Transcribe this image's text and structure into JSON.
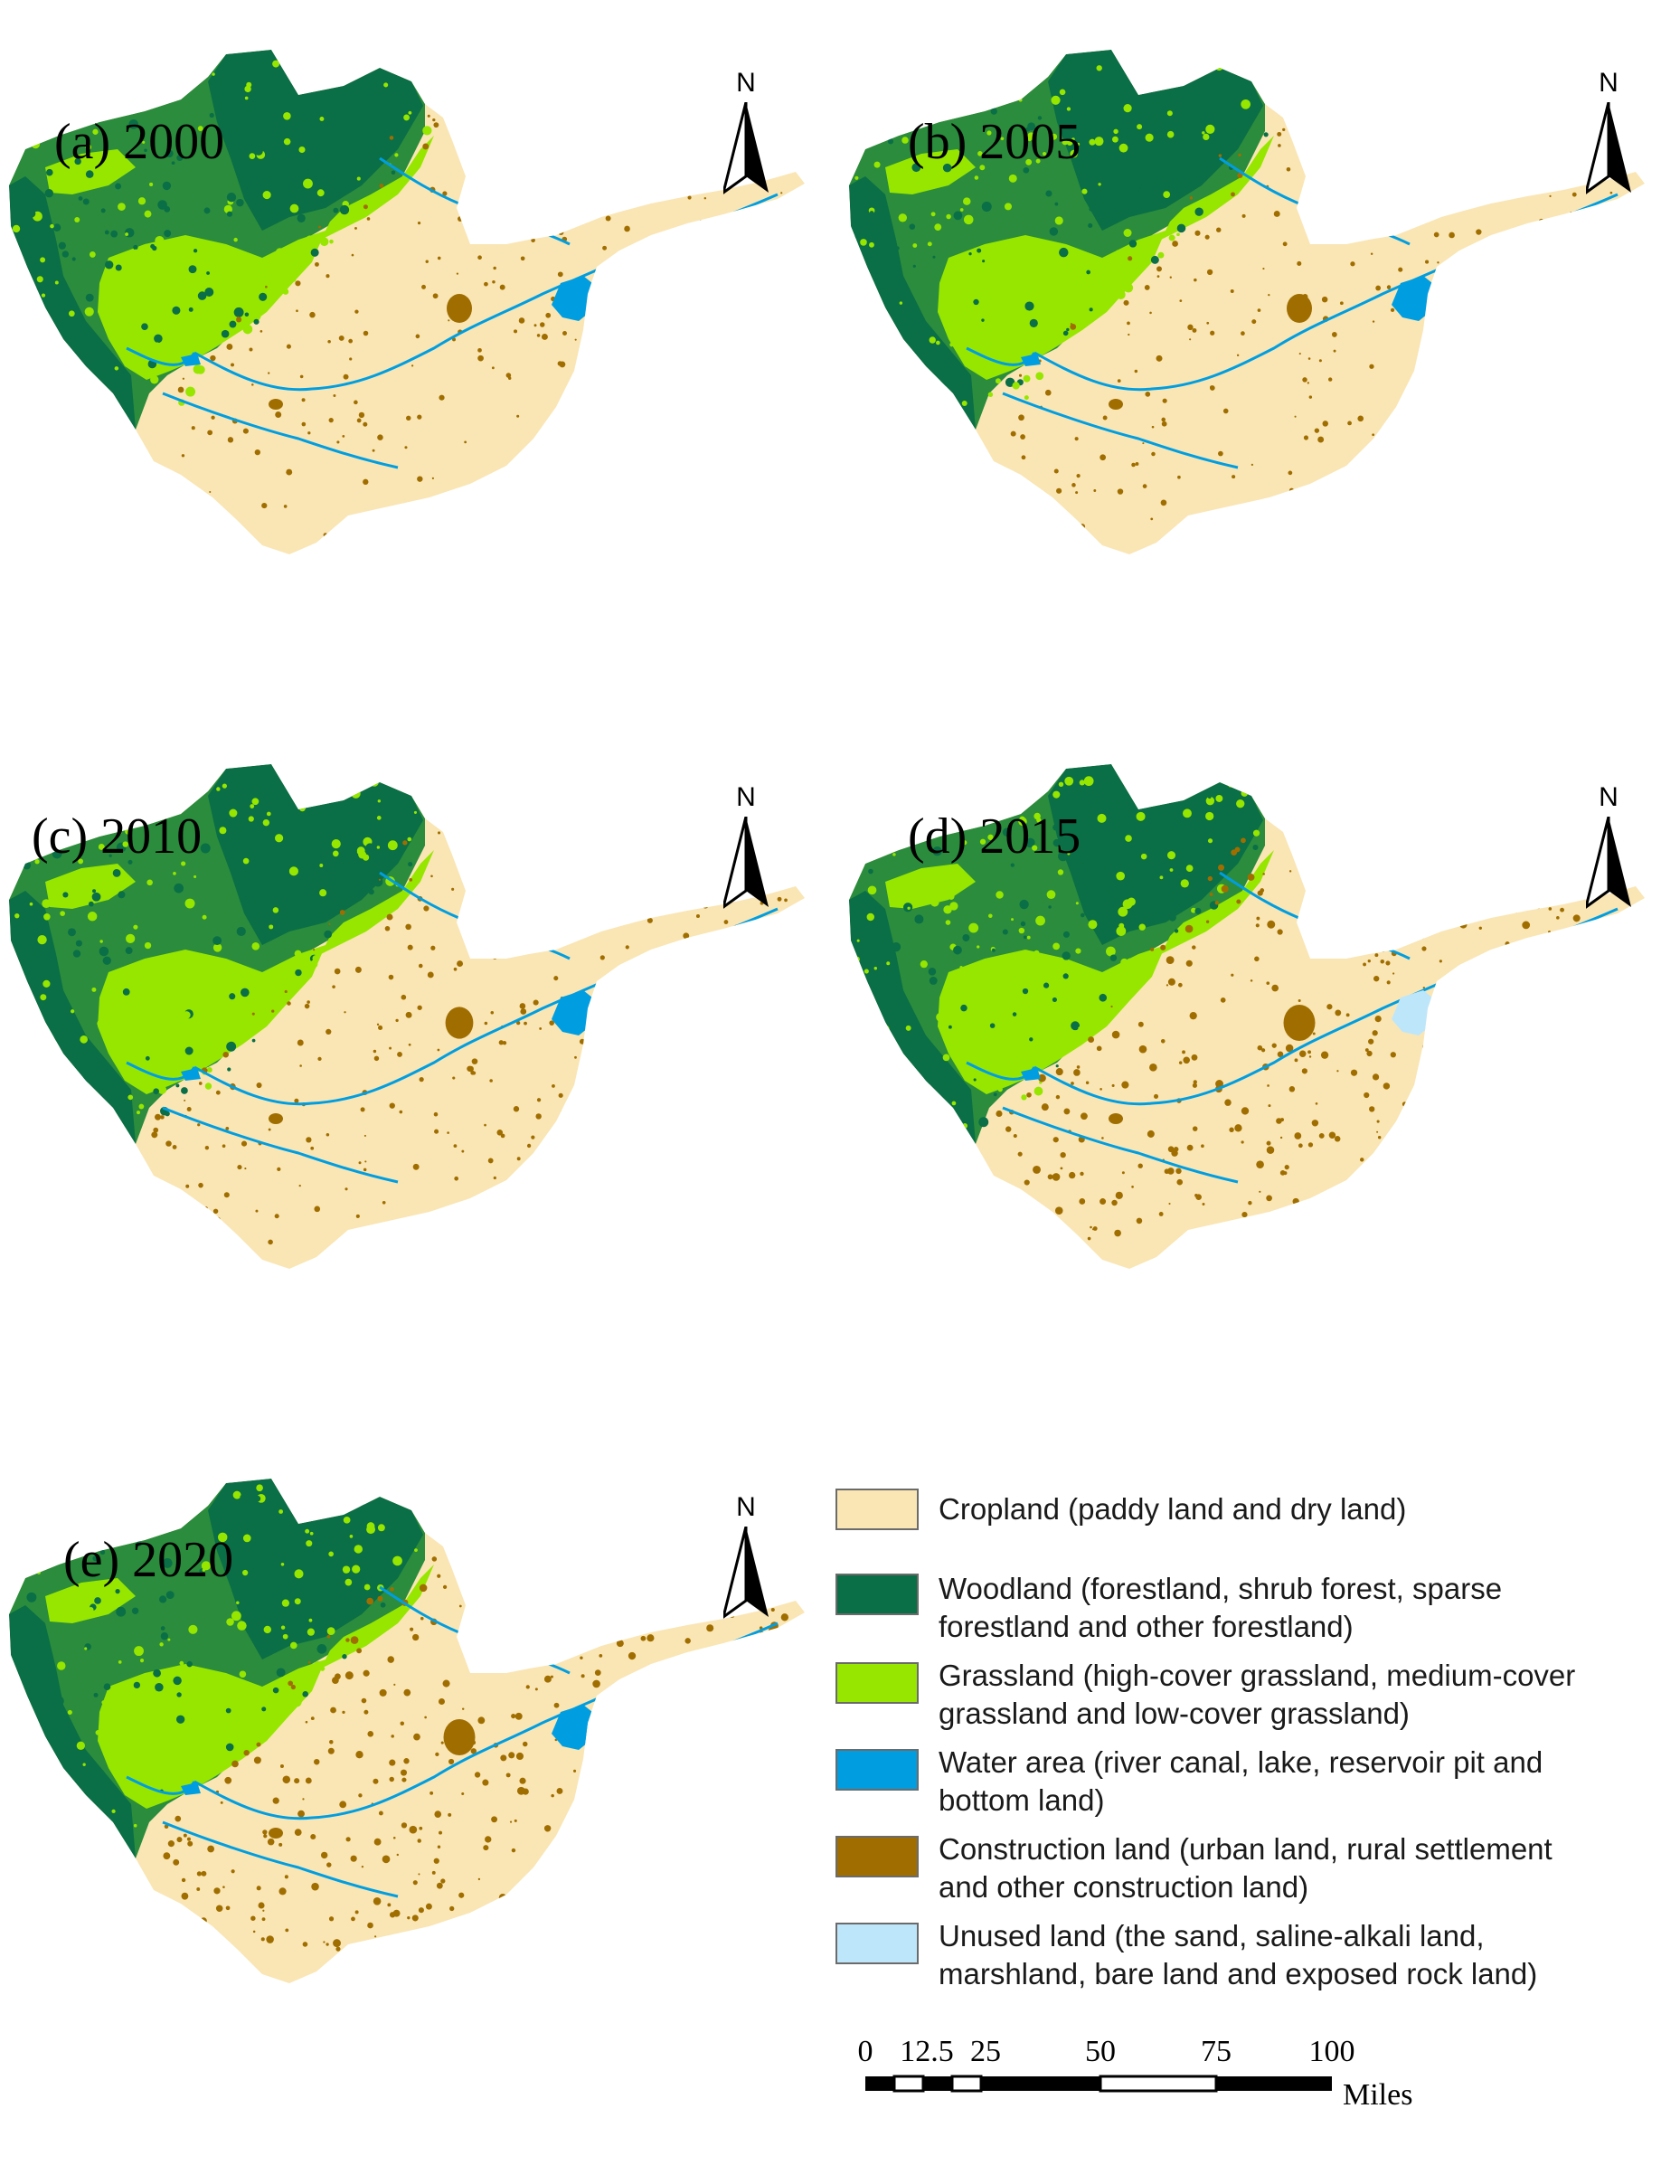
{
  "panels": [
    {
      "title": "(a) 2000",
      "year": "2000",
      "lake": "water",
      "builtup": "low"
    },
    {
      "title": "(b) 2005",
      "year": "2005",
      "lake": "water",
      "builtup": "low"
    },
    {
      "title": "(c) 2010",
      "year": "2010",
      "lake": "water",
      "builtup": "medium"
    },
    {
      "title": "(d) 2015",
      "year": "2015",
      "lake": "unused",
      "builtup": "high"
    },
    {
      "title": "(e) 2020",
      "year": "2020",
      "lake": "mixed",
      "builtup": "high"
    }
  ],
  "north_arrow": {
    "label": "N"
  },
  "legend": {
    "items": [
      {
        "label_line1": "Cropland (paddy land and dry land)",
        "label_line2": "",
        "color": "#fae6b4"
      },
      {
        "label_line1": "Woodland (forestland, shrub forest, sparse",
        "label_line2": "forestland and other forestland)",
        "color": "#0a6e46"
      },
      {
        "label_line1": "Grassland (high-cover grassland, medium-cover",
        "label_line2": "grassland and low-cover grassland)",
        "color": "#96e600"
      },
      {
        "label_line1": "Water area (river canal, lake, reservoir pit and",
        "label_line2": "bottom land)",
        "color": "#009ee1"
      },
      {
        "label_line1": "Construction land (urban land, rural settlement",
        "label_line2": "and other construction land)",
        "color": "#a06e00"
      },
      {
        "label_line1": "Unused land (the sand, saline-alkali land,",
        "label_line2": "marshland, bare land and exposed rock land)",
        "color": "#bee6fa"
      }
    ]
  },
  "scale_bar": {
    "ticks": [
      "0",
      "12.5",
      "25",
      "50",
      "75",
      "100"
    ],
    "tick_values": [
      0,
      12.5,
      25,
      50,
      75,
      100
    ],
    "units": "Miles"
  },
  "colors": {
    "cropland": "#fae6b4",
    "woodland": "#0a6e46",
    "woodland_mid": "#2a8c3c",
    "grassland": "#96e600",
    "water": "#009ee1",
    "construction": "#a06e00",
    "unused": "#bee6fa"
  }
}
